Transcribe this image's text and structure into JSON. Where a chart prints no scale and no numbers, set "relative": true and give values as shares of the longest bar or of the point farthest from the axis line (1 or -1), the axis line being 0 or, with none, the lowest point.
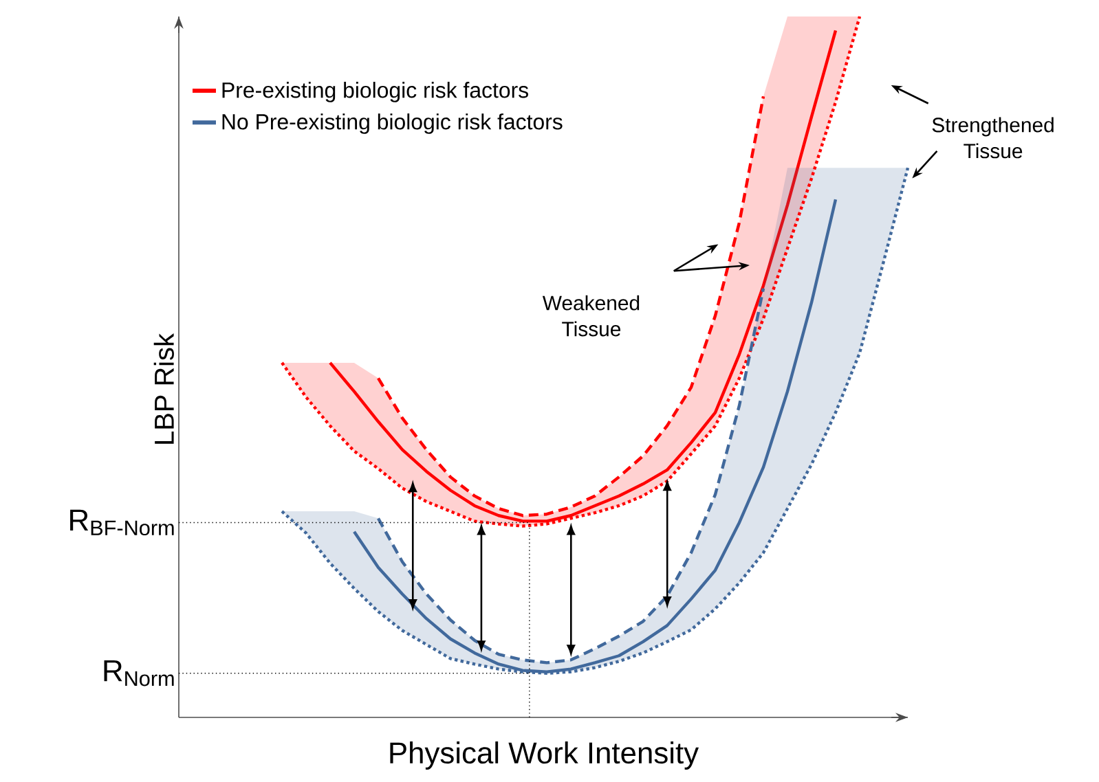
{
  "chart_data": {
    "type": "line",
    "relative": true,
    "xlabel": "Physical Work Intensity",
    "ylabel": "LBP Risk",
    "legend": "top left",
    "categories": [
      null,
      null,
      null,
      null,
      null,
      null,
      null,
      null,
      null,
      null,
      null,
      null,
      null,
      null,
      null,
      null,
      null,
      null,
      null,
      null,
      null,
      null,
      null,
      null,
      null,
      null,
      null
    ],
    "series": [
      {
        "name": "Pre-existing biologic risk factors",
        "color": "#ff0000",
        "line_style": "solid",
        "values": [
          null,
          null,
          0.506,
          0.465,
          0.422,
          0.382,
          0.351,
          0.324,
          0.302,
          0.288,
          0.28,
          0.28,
          0.288,
          0.302,
          0.316,
          0.333,
          0.353,
          0.392,
          0.435,
          0.518,
          0.616,
          0.731,
          0.857,
          0.98,
          null,
          null,
          null
        ],
        "lower": [
          0.506,
          0.457,
          0.416,
          0.38,
          0.355,
          0.327,
          0.308,
          0.294,
          0.28,
          0.276,
          0.273,
          0.276,
          0.284,
          0.292,
          0.302,
          0.316,
          0.337,
          0.376,
          0.416,
          0.484,
          0.569,
          0.669,
          0.769,
          0.878,
          1.0,
          null,
          null
        ],
        "upper": [
          0.506,
          0.506,
          0.506,
          0.506,
          0.484,
          0.427,
          0.382,
          0.343,
          0.316,
          0.298,
          0.288,
          0.29,
          0.3,
          0.316,
          0.343,
          0.373,
          0.416,
          0.471,
          0.573,
          0.706,
          0.886,
          1.0,
          1.0,
          1.0,
          1.0,
          null,
          null
        ]
      },
      {
        "name": "No Pre-existing biologic risk factors",
        "color": "#41699c",
        "line_style": "solid",
        "values": [
          null,
          null,
          null,
          0.265,
          0.214,
          0.176,
          0.141,
          0.112,
          0.092,
          0.076,
          0.067,
          0.065,
          0.069,
          0.078,
          0.088,
          0.108,
          0.131,
          0.169,
          0.21,
          0.278,
          0.357,
          0.465,
          0.592,
          0.739,
          null,
          null,
          null
        ],
        "lower": [
          0.294,
          0.263,
          0.22,
          0.184,
          0.151,
          0.124,
          0.104,
          0.084,
          0.076,
          0.069,
          0.065,
          0.063,
          0.065,
          0.071,
          0.08,
          0.092,
          0.108,
          0.125,
          0.155,
          0.192,
          0.235,
          0.298,
          0.361,
          0.435,
          0.52,
          0.651,
          0.784
        ],
        "upper": [
          0.294,
          0.294,
          0.294,
          0.294,
          0.284,
          0.222,
          0.176,
          0.139,
          0.11,
          0.09,
          0.082,
          0.078,
          0.082,
          0.098,
          0.116,
          0.137,
          0.173,
          0.235,
          0.318,
          0.445,
          0.612,
          0.784,
          0.784,
          0.784,
          0.784,
          0.784,
          0.784
        ]
      },
      {
        "color": "#ff0000",
        "line_style": "dashed",
        "values": [
          null,
          null,
          null,
          null,
          0.484,
          0.427,
          0.382,
          0.343,
          0.316,
          0.298,
          0.288,
          0.29,
          0.3,
          0.316,
          0.343,
          0.373,
          0.416,
          0.471,
          0.573,
          0.706,
          0.886,
          null,
          null,
          null,
          null,
          null,
          null
        ]
      },
      {
        "color": "#ff0000",
        "line_style": "dotted",
        "values": [
          0.506,
          0.457,
          0.416,
          0.38,
          0.355,
          0.327,
          0.308,
          0.294,
          0.28,
          0.276,
          0.273,
          0.276,
          0.284,
          0.292,
          0.302,
          0.316,
          0.337,
          0.376,
          0.416,
          0.484,
          0.569,
          0.669,
          0.769,
          0.878,
          1.0,
          null,
          null
        ]
      },
      {
        "color": "#41699c",
        "line_style": "dashed",
        "values": [
          null,
          null,
          null,
          null,
          0.284,
          0.222,
          0.176,
          0.139,
          0.11,
          0.09,
          0.082,
          0.078,
          0.082,
          0.098,
          0.116,
          0.137,
          0.173,
          0.235,
          0.318,
          0.445,
          0.612,
          null,
          null,
          null,
          null,
          null,
          null
        ]
      },
      {
        "color": "#41699c",
        "line_style": "dotted",
        "values": [
          0.294,
          0.263,
          0.22,
          0.184,
          0.151,
          0.124,
          0.104,
          0.084,
          0.076,
          0.069,
          0.065,
          0.063,
          0.065,
          0.071,
          0.08,
          0.092,
          0.108,
          0.125,
          0.155,
          0.192,
          0.235,
          0.298,
          0.361,
          0.435,
          0.52,
          0.651,
          0.784
        ]
      }
    ],
    "ref_lines": [
      {
        "axis": "y",
        "value": 0.278,
        "label": "R$_{BF-Norm}$"
      },
      {
        "axis": "y",
        "value": 0.063,
        "label": "R$_{Norm}$"
      }
    ],
    "annotations": [
      "Weakened Tissue",
      "Strengthened Tissue"
    ]
  }
}
